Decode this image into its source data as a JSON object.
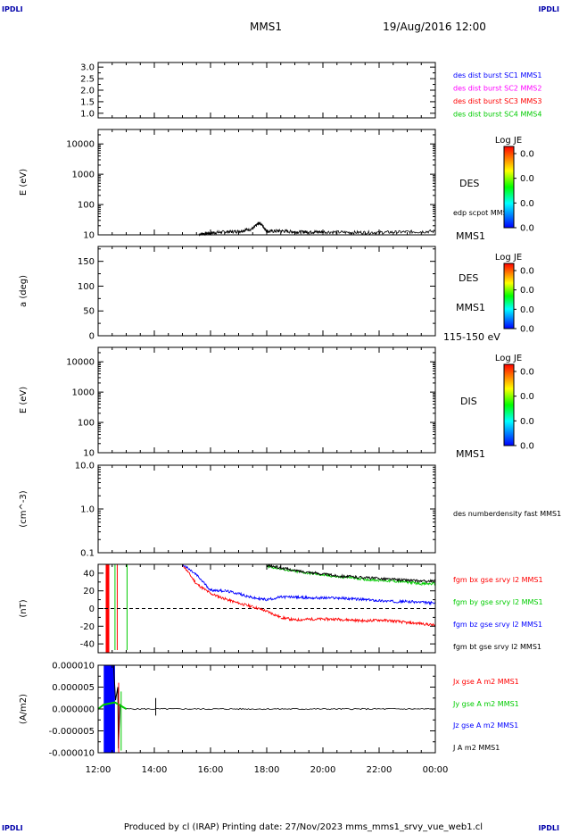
{
  "corner_tl": "IPDLI",
  "corner_tr": "IPDLI",
  "corner_bl": "IPDLI",
  "corner_br": "IPDLI",
  "header": {
    "spacecraft": "MMS1",
    "datetime": "19/Aug/2016 12:00"
  },
  "footer": "Produced by cl (IRAP)   Printing date: 27/Nov/2023   mms_mms1_srvy_vue_web1.cl",
  "colors": {
    "blue": "#0000ff",
    "magenta": "#ff00ff",
    "red": "#ff0000",
    "green": "#00cc00",
    "black": "#000000"
  },
  "chart_data": [
    {
      "type": "line",
      "panel": "des dist burst availability",
      "ylabel": "",
      "ylim": [
        0.8,
        3.2
      ],
      "y_ticks": [
        "3.0",
        "2.5",
        "2.0",
        "1.5",
        "1.0"
      ],
      "legend": [
        {
          "label": "des dist burst SC1 MMS1",
          "color": "#0000ff"
        },
        {
          "label": "des dist burst SC2 MMS2",
          "color": "#ff00ff"
        },
        {
          "label": "des dist burst SC3 MMS3",
          "color": "#ff0000"
        },
        {
          "label": "des dist burst SC4 MMS4",
          "color": "#00cc00"
        }
      ],
      "series": []
    },
    {
      "type": "heatmap",
      "panel": "DES energy spectrogram",
      "ylabel": "E (eV)",
      "scale": "log",
      "ylim": [
        10,
        30000
      ],
      "y_ticks": [
        "10000",
        "1000",
        "100",
        "10"
      ],
      "right_labels": [
        "DES",
        "MMS1"
      ],
      "colorbar": {
        "title": "Log JE",
        "ticks": [
          "0.0",
          "0.0",
          "0.0",
          "0.0"
        ]
      },
      "overlay": {
        "label": "edp scpot MMS1",
        "x": [
          "15:35",
          "16:00",
          "16:30",
          "17:00",
          "17:30",
          "17:45",
          "18:00",
          "18:30",
          "19:00",
          "19:30",
          "20:00",
          "21:00",
          "22:00",
          "23:00",
          "00:00"
        ],
        "y": [
          10.5,
          11.5,
          12.5,
          13,
          16,
          25,
          13,
          13.5,
          12.5,
          12.5,
          12.5,
          12,
          12,
          12.5,
          13
        ]
      }
    },
    {
      "type": "heatmap",
      "panel": "DES pitch angle",
      "ylabel": "a (deg)",
      "ylim": [
        0,
        180
      ],
      "y_ticks": [
        "150",
        "100",
        "50",
        "0"
      ],
      "right_labels": [
        "DES",
        "MMS1",
        "115-150 eV"
      ],
      "colorbar": {
        "title": "Log JE",
        "ticks": [
          "0.0",
          "0.0",
          "0.0",
          "0.0"
        ]
      }
    },
    {
      "type": "heatmap",
      "panel": "DIS energy spectrogram",
      "ylabel": "E (eV)",
      "scale": "log",
      "ylim": [
        10,
        30000
      ],
      "y_ticks": [
        "10000",
        "1000",
        "100",
        "10"
      ],
      "right_labels": [
        "DIS",
        "MMS1"
      ],
      "colorbar": {
        "title": "Log JE",
        "ticks": [
          "0.0",
          "0.0",
          "0.0",
          "0.0"
        ]
      }
    },
    {
      "type": "line",
      "panel": "DES density",
      "ylabel": "(cm^-3)",
      "scale": "log",
      "ylim": [
        0.1,
        10
      ],
      "y_ticks": [
        "10.0",
        "1.0",
        "0.1"
      ],
      "legend": [
        {
          "label": "des numberdensity fast MMS1",
          "color": "#000000"
        }
      ],
      "series": []
    },
    {
      "type": "line",
      "panel": "FGM magnetic field",
      "ylabel": "(nT)",
      "ylim": [
        -50,
        50
      ],
      "y_ticks": [
        "40",
        "20",
        "0",
        "-20",
        "-40"
      ],
      "legend": [
        {
          "label": "fgm bx gse srvy l2 MMS1",
          "color": "#ff0000"
        },
        {
          "label": "fgm by gse srvy l2 MMS1",
          "color": "#00cc00"
        },
        {
          "label": "fgm bz gse srvy l2 MMS1",
          "color": "#0000ff"
        },
        {
          "label": "fgm bt gse srvy l2 MMS1",
          "color": "#000000"
        }
      ],
      "x_hours": [
        15.0,
        15.5,
        16.0,
        16.5,
        17.0,
        17.5,
        18.0,
        18.5,
        19.0,
        19.5,
        20.0,
        20.5,
        21.0,
        21.5,
        22.0,
        22.5,
        23.0,
        23.5,
        24.0
      ],
      "series": [
        {
          "name": "fgm bx gse srvy l2 MMS1",
          "color": "#ff0000",
          "values": [
            50,
            28,
            17,
            11,
            6,
            2,
            -3,
            -10,
            -13,
            -12,
            -12,
            -12,
            -13,
            -14,
            -13,
            -14,
            -16,
            -17,
            -19
          ]
        },
        {
          "name": "fgm by gse srvy l2 MMS1",
          "color": "#00cc00",
          "values": [
            null,
            null,
            null,
            null,
            null,
            null,
            48,
            45,
            42,
            40,
            38,
            36,
            35,
            33,
            32,
            31,
            30,
            28,
            28
          ]
        },
        {
          "name": "fgm bz gse srvy l2 MMS1",
          "color": "#0000ff",
          "values": [
            50,
            38,
            21,
            20,
            17,
            12,
            10,
            13,
            13,
            12,
            12,
            12,
            11,
            10,
            9,
            8,
            8,
            7,
            6
          ]
        },
        {
          "name": "fgm bt gse srvy l2 MMS1",
          "color": "#000000",
          "values": [
            null,
            null,
            null,
            null,
            null,
            null,
            49,
            46,
            43,
            41,
            39,
            37,
            36,
            35,
            34,
            33,
            32,
            31,
            31
          ]
        }
      ],
      "reference_line": 0
    },
    {
      "type": "line",
      "panel": "Current density",
      "ylabel": "(A/m2)",
      "ylim": [
        -1e-05,
        1e-05
      ],
      "y_ticks": [
        "0.000010",
        "0.000005",
        "0.000000",
        "-0.000005",
        "-0.000010"
      ],
      "legend": [
        {
          "label": "Jx gse A m2 MMS1",
          "color": "#ff0000"
        },
        {
          "label": "Jy gse A m2 MMS1",
          "color": "#00cc00"
        },
        {
          "label": "Jz gse A m2 MMS1",
          "color": "#0000ff"
        },
        {
          "label": "J A m2 MMS1",
          "color": "#000000"
        }
      ],
      "series": []
    }
  ],
  "x_axis": {
    "ticks": [
      "12:00",
      "14:00",
      "16:00",
      "18:00",
      "20:00",
      "22:00",
      "00:00"
    ]
  }
}
